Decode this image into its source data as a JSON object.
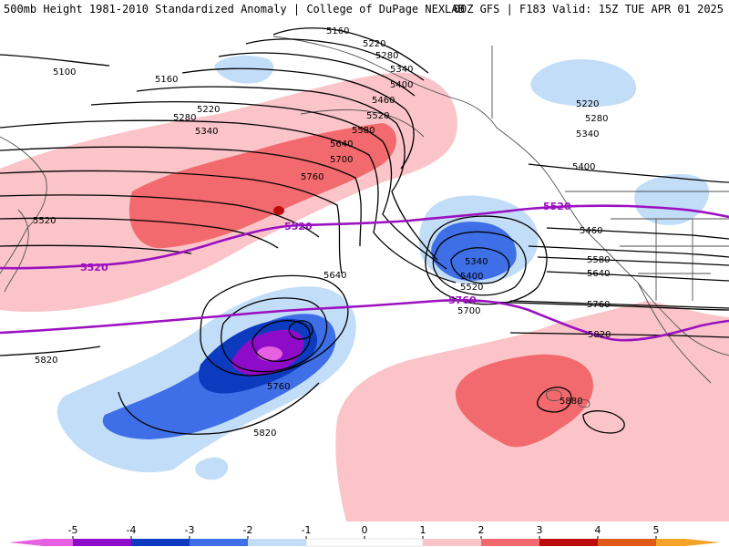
{
  "header": {
    "left": "500mb Height 1981-2010 Standardized Anomaly | College of DuPage NEXLAB",
    "right": "00Z GFS | F183 Valid: 15Z TUE APR 01 2025"
  },
  "colors": {
    "neg5": "#e75fe3",
    "neg4": "#8e0bc9",
    "neg3": "#0d3bbf",
    "neg2": "#3f6fe6",
    "neg1": "#c2ddf7",
    "zero": "#ffffff",
    "pos1": "#fac4c8",
    "pos2": "#f26a6d",
    "pos3": "#bd0a0a",
    "pos4": "#e05a17",
    "pos5": "#f4a42a",
    "contour": "#000000",
    "highlight": "#9b11c0"
  },
  "legend": {
    "ticks": [
      "-5",
      "-4",
      "-3",
      "-2",
      "-1",
      "0",
      "1",
      "2",
      "3",
      "4",
      "5"
    ]
  },
  "contour_labels": [
    "5160",
    "5220",
    "5280",
    "5340",
    "5400",
    "5460",
    "5520",
    "5580",
    "5640",
    "5700",
    "5760",
    "5100",
    "5160",
    "5220",
    "5280",
    "5340",
    "5220",
    "5280",
    "5340",
    "5400",
    "5460",
    "5580",
    "5640",
    "5760",
    "5820",
    "5340",
    "5400",
    "5520",
    "5700",
    "5640",
    "5760",
    "5820",
    "5520",
    "5820",
    "5880"
  ],
  "purple_labels": [
    "5520",
    "5520",
    "5520",
    "5760"
  ]
}
